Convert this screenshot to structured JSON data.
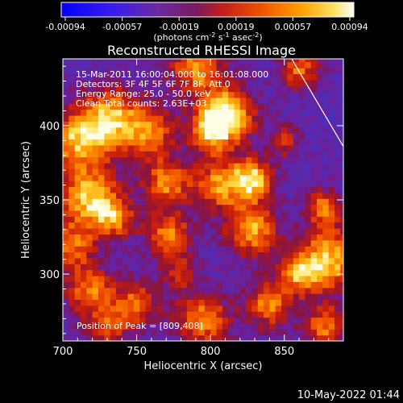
{
  "colorbar": {
    "ticks": [
      "-0.00094",
      "-0.00057",
      "-0.00019",
      "0.00019",
      "0.00057",
      "0.00094"
    ],
    "units_parts": [
      "(photons cm",
      "-2",
      " s",
      "-1",
      " asec",
      "-2",
      ")"
    ]
  },
  "chart_data": {
    "type": "heatmap",
    "title": "Reconstructed RHESSI Image",
    "xlabel": "Heliocentric X (arcsec)",
    "ylabel": "Heliocentric Y (arcsec)",
    "xlim": [
      700,
      890
    ],
    "ylim": [
      255,
      445
    ],
    "xticks": [
      "700",
      "750",
      "800",
      "850"
    ],
    "yticks": [
      "300",
      "350",
      "400"
    ],
    "value_range": [
      -0.00094,
      0.00094
    ],
    "info_lines": [
      "15-Mar-2011 16:00:04.000 to 16:01:08.000",
      "Detectors: 3F 4F 5F 6F 7F 8F, Att 0",
      "Energy Range: 25.0 - 50.0 keV",
      "Clean     Total counts: 2.63E+03"
    ],
    "peak_label": "Position of Peak = [809,408]",
    "peak": [
      809,
      408
    ],
    "limb_line": [
      [
        855,
        445
      ],
      [
        890,
        386
      ]
    ],
    "hot_spots": [
      {
        "x": 811,
        "y": 408,
        "r": 13,
        "v": 1.0
      },
      {
        "x": 800,
        "y": 396,
        "r": 10,
        "v": 0.7
      },
      {
        "x": 733,
        "y": 405,
        "r": 15,
        "v": 0.8
      },
      {
        "x": 760,
        "y": 395,
        "r": 12,
        "v": 0.6
      },
      {
        "x": 710,
        "y": 390,
        "r": 14,
        "v": 0.75
      },
      {
        "x": 718,
        "y": 352,
        "r": 14,
        "v": 0.85
      },
      {
        "x": 735,
        "y": 338,
        "r": 10,
        "v": 0.6
      },
      {
        "x": 770,
        "y": 362,
        "r": 11,
        "v": 0.7
      },
      {
        "x": 805,
        "y": 360,
        "r": 12,
        "v": 0.7
      },
      {
        "x": 828,
        "y": 364,
        "r": 10,
        "v": 0.9
      },
      {
        "x": 790,
        "y": 440,
        "r": 13,
        "v": 0.7
      },
      {
        "x": 860,
        "y": 438,
        "r": 10,
        "v": 0.6
      },
      {
        "x": 772,
        "y": 326,
        "r": 11,
        "v": 0.7
      },
      {
        "x": 828,
        "y": 330,
        "r": 12,
        "v": 0.8
      },
      {
        "x": 880,
        "y": 310,
        "r": 15,
        "v": 0.85
      },
      {
        "x": 876,
        "y": 345,
        "r": 9,
        "v": 0.6
      },
      {
        "x": 706,
        "y": 320,
        "r": 11,
        "v": 0.6
      },
      {
        "x": 718,
        "y": 290,
        "r": 12,
        "v": 0.65
      },
      {
        "x": 750,
        "y": 280,
        "r": 11,
        "v": 0.6
      },
      {
        "x": 795,
        "y": 270,
        "r": 13,
        "v": 0.7
      },
      {
        "x": 840,
        "y": 280,
        "r": 11,
        "v": 0.7
      },
      {
        "x": 860,
        "y": 300,
        "r": 9,
        "v": 0.6
      },
      {
        "x": 878,
        "y": 265,
        "r": 10,
        "v": 0.65
      },
      {
        "x": 730,
        "y": 265,
        "r": 10,
        "v": 0.5
      },
      {
        "x": 780,
        "y": 300,
        "r": 8,
        "v": 0.45
      },
      {
        "x": 850,
        "y": 390,
        "r": 8,
        "v": 0.45
      }
    ]
  },
  "timestamp": "10-May-2022 01:44"
}
